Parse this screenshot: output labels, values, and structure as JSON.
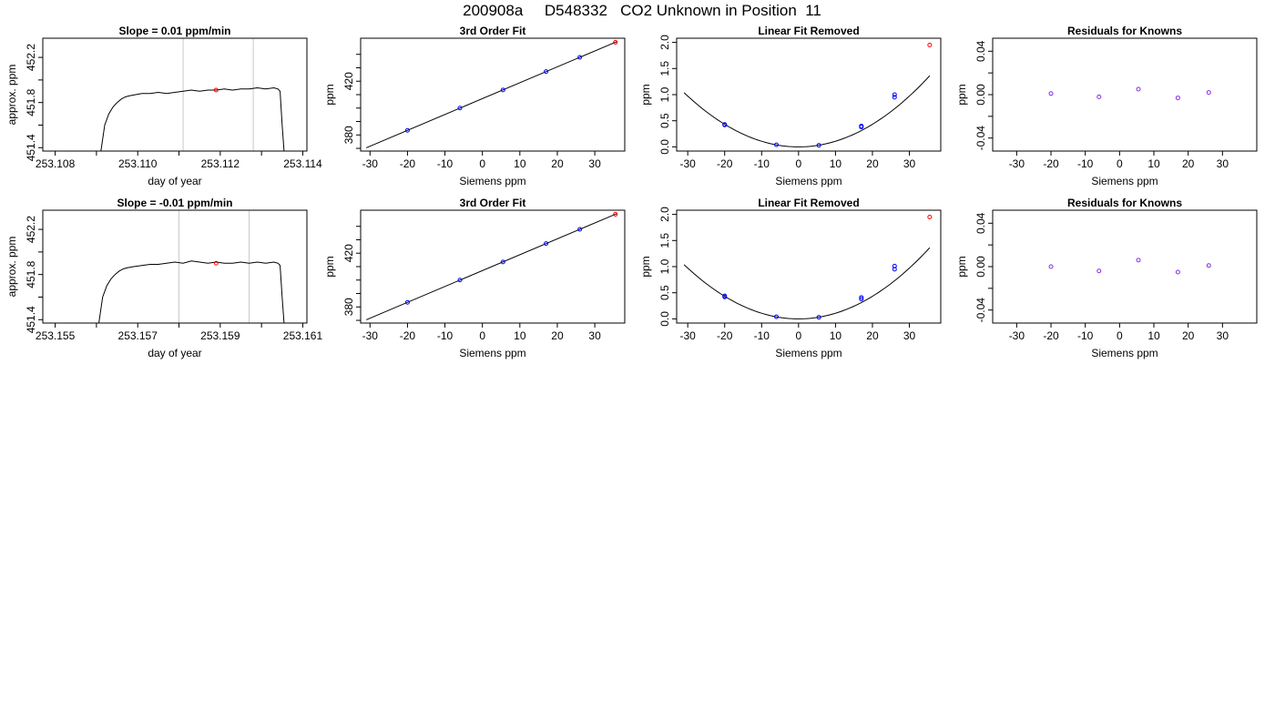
{
  "page": {
    "title": "200908a     D548332   CO2 Unknown in Position  11"
  },
  "chart_data": [
    {
      "type": "line",
      "title": "Slope =  0.01  ppm/min",
      "xlabel": "day of year",
      "ylabel": "approx. ppm",
      "xlim": [
        253.1077,
        253.1141
      ],
      "ylim": [
        451.37,
        452.37
      ],
      "xticks": [
        253.108,
        253.109,
        253.11,
        253.111,
        253.112,
        253.113,
        253.114
      ],
      "xtick_labels": [
        "253.108",
        "",
        "253.110",
        "",
        "253.112",
        "",
        "253.114"
      ],
      "yticks": [
        451.4,
        451.6,
        451.8,
        452.0,
        452.2
      ],
      "ytick_labels": [
        "451.4",
        "",
        "451.8",
        "",
        "452.2"
      ],
      "vlines": [
        253.1111,
        253.1128
      ],
      "series": [
        {
          "color": "#000000",
          "x": [
            253.1091,
            253.1092,
            253.1093,
            253.1094,
            253.1095,
            253.1096,
            253.1097,
            253.1098,
            253.10995,
            253.1101,
            253.1103,
            253.1105,
            253.1107,
            253.1109,
            253.1111,
            253.1113,
            253.1115,
            253.1117,
            253.1119,
            253.1121,
            253.1123,
            253.1125,
            253.1127,
            253.1129,
            253.1131,
            253.1133,
            253.1134,
            253.11345,
            253.1135,
            253.11355
          ],
          "y": [
            451.35,
            451.6,
            451.7,
            451.76,
            451.8,
            451.83,
            451.85,
            451.86,
            451.87,
            451.88,
            451.88,
            451.89,
            451.88,
            451.89,
            451.9,
            451.91,
            451.9,
            451.91,
            451.91,
            451.92,
            451.91,
            451.92,
            451.92,
            451.93,
            451.92,
            451.93,
            451.92,
            451.9,
            451.6,
            451.35
          ]
        }
      ],
      "points": [
        {
          "x": 253.1119,
          "y": 451.91,
          "color": "#ff0000"
        }
      ],
      "grid": false
    },
    {
      "type": "scatter",
      "title": "3rd Order Fit",
      "xlabel": "Siemens ppm",
      "ylabel": "ppm",
      "xlim": [
        -32.5,
        38
      ],
      "ylim": [
        368,
        452
      ],
      "xticks": [
        -30,
        -20,
        -10,
        0,
        10,
        20,
        30
      ],
      "yticks": [
        370,
        380,
        390,
        400,
        410,
        420,
        430,
        440
      ],
      "ytick_labels": [
        "",
        "380",
        "",
        "",
        "",
        "420",
        "",
        ""
      ],
      "line": {
        "x": [
          -31,
          36
        ],
        "y": [
          370.4,
          449.6
        ],
        "color": "#000000"
      },
      "series": [
        {
          "name": "",
          "color": "#0000ff",
          "x": [
            -20,
            -6,
            5.5,
            17,
            26
          ],
          "y": [
            383.4,
            400.0,
            413.5,
            427.2,
            437.8
          ]
        },
        {
          "name": "",
          "color": "#ff0000",
          "x": [
            35.5
          ],
          "y": [
            449.0
          ]
        }
      ],
      "grid": false
    },
    {
      "type": "scatter",
      "title": "Linear Fit Removed",
      "xlabel": "Siemens ppm",
      "ylabel": "ppm",
      "xlim": [
        -33,
        38.5
      ],
      "ylim": [
        -0.08,
        2.08
      ],
      "xticks": [
        -30,
        -20,
        -10,
        0,
        10,
        20,
        30
      ],
      "yticks": [
        0.0,
        0.5,
        1.0,
        1.5,
        2.0
      ],
      "ytick_labels": [
        "0.0",
        "0.5",
        "1.0",
        "1.5",
        "2.0"
      ],
      "curve": {
        "xmin": -31,
        "xmax": 35.5,
        "coefficients": [
          0,
          0,
          0.00108
        ],
        "color": "#000000"
      },
      "series": [
        {
          "name": "",
          "color": "#0000ff",
          "x": [
            -20,
            -20,
            -6,
            5.5,
            17,
            17,
            26,
            26
          ],
          "y": [
            0.43,
            0.42,
            0.04,
            0.03,
            0.38,
            0.4,
            0.95,
            1.0
          ]
        },
        {
          "name": "",
          "color": "#ff0000",
          "x": [
            35.5
          ],
          "y": [
            1.95
          ]
        }
      ],
      "grid": false
    },
    {
      "type": "scatter",
      "title": "Residuals for Knowns",
      "xlabel": "Siemens ppm",
      "ylabel": "ppm",
      "xlim": [
        -37,
        40
      ],
      "ylim": [
        -0.052,
        0.052
      ],
      "xticks": [
        -30,
        -20,
        -10,
        0,
        10,
        20,
        30
      ],
      "yticks": [
        -0.04,
        -0.02,
        0.0,
        0.02,
        0.04
      ],
      "ytick_labels": [
        "-0.04",
        "",
        "0.00",
        "",
        "0.04"
      ],
      "series": [
        {
          "name": "",
          "color": "#8a2be2",
          "x": [
            -20,
            -6,
            5.5,
            17,
            26
          ],
          "y": [
            0.001,
            -0.002,
            0.005,
            -0.003,
            0.002
          ]
        }
      ],
      "grid": false
    },
    {
      "type": "line",
      "title": "Slope =  -0.01  ppm/min",
      "xlabel": "day of year",
      "ylabel": "approx. ppm",
      "xlim": [
        253.1547,
        253.1611
      ],
      "ylim": [
        451.37,
        452.37
      ],
      "xticks": [
        253.155,
        253.156,
        253.157,
        253.158,
        253.159,
        253.16,
        253.161
      ],
      "xtick_labels": [
        "253.155",
        "",
        "253.157",
        "",
        "253.159",
        "",
        "253.161"
      ],
      "yticks": [
        451.4,
        451.6,
        451.8,
        452.0,
        452.2
      ],
      "ytick_labels": [
        "451.4",
        "",
        "451.8",
        "",
        "452.2"
      ],
      "vlines": [
        253.158,
        253.1597
      ],
      "series": [
        {
          "color": "#000000",
          "x": [
            253.15605,
            253.15615,
            253.15625,
            253.15635,
            253.15645,
            253.15655,
            253.15665,
            253.15675,
            253.1569,
            253.1571,
            253.1573,
            253.1575,
            253.1577,
            253.1579,
            253.1581,
            253.1583,
            253.1585,
            253.1587,
            253.1589,
            253.1591,
            253.1593,
            253.1595,
            253.1597,
            253.1599,
            253.1601,
            253.1603,
            253.1604,
            253.16045,
            253.1605,
            253.16055
          ],
          "y": [
            451.35,
            451.6,
            451.7,
            451.76,
            451.8,
            451.83,
            451.85,
            451.86,
            451.87,
            451.88,
            451.89,
            451.89,
            451.9,
            451.91,
            451.9,
            451.92,
            451.91,
            451.9,
            451.91,
            451.9,
            451.9,
            451.91,
            451.9,
            451.91,
            451.9,
            451.91,
            451.9,
            451.88,
            451.6,
            451.35
          ]
        }
      ],
      "points": [
        {
          "x": 253.1589,
          "y": 451.9,
          "color": "#ff0000"
        }
      ],
      "grid": false
    },
    {
      "type": "scatter",
      "title": "3rd Order Fit",
      "xlabel": "Siemens ppm",
      "ylabel": "ppm",
      "xlim": [
        -32.5,
        38
      ],
      "ylim": [
        368,
        452
      ],
      "xticks": [
        -30,
        -20,
        -10,
        0,
        10,
        20,
        30
      ],
      "yticks": [
        370,
        380,
        390,
        400,
        410,
        420,
        430,
        440
      ],
      "ytick_labels": [
        "",
        "380",
        "",
        "",
        "",
        "420",
        "",
        ""
      ],
      "line": {
        "x": [
          -31,
          36
        ],
        "y": [
          370.4,
          449.6
        ],
        "color": "#000000"
      },
      "series": [
        {
          "name": "",
          "color": "#0000ff",
          "x": [
            -20,
            -6,
            5.5,
            17,
            26
          ],
          "y": [
            383.4,
            400.0,
            413.5,
            427.2,
            437.8
          ]
        },
        {
          "name": "",
          "color": "#ff0000",
          "x": [
            35.5
          ],
          "y": [
            449.0
          ]
        }
      ],
      "grid": false
    },
    {
      "type": "scatter",
      "title": "Linear Fit Removed",
      "xlabel": "Siemens ppm",
      "ylabel": "ppm",
      "xlim": [
        -33,
        38.5
      ],
      "ylim": [
        -0.08,
        2.08
      ],
      "xticks": [
        -30,
        -20,
        -10,
        0,
        10,
        20,
        30
      ],
      "yticks": [
        0.0,
        0.5,
        1.0,
        1.5,
        2.0
      ],
      "ytick_labels": [
        "0.0",
        "0.5",
        "1.0",
        "1.5",
        "2.0"
      ],
      "curve": {
        "xmin": -31,
        "xmax": 35.5,
        "coefficients": [
          0,
          0,
          0.00108
        ],
        "color": "#000000"
      },
      "series": [
        {
          "name": "",
          "color": "#0000ff",
          "x": [
            -20,
            -20,
            -6,
            5.5,
            17,
            17,
            26,
            26
          ],
          "y": [
            0.44,
            0.42,
            0.04,
            0.03,
            0.38,
            0.41,
            0.95,
            1.01
          ]
        },
        {
          "name": "",
          "color": "#ff0000",
          "x": [
            35.5
          ],
          "y": [
            1.95
          ]
        }
      ],
      "grid": false
    },
    {
      "type": "scatter",
      "title": "Residuals for Knowns",
      "xlabel": "Siemens ppm",
      "ylabel": "ppm",
      "xlim": [
        -37,
        40
      ],
      "ylim": [
        -0.052,
        0.052
      ],
      "xticks": [
        -30,
        -20,
        -10,
        0,
        10,
        20,
        30
      ],
      "yticks": [
        -0.04,
        -0.02,
        0.0,
        0.02,
        0.04
      ],
      "ytick_labels": [
        "-0.04",
        "",
        "0.00",
        "",
        "0.04"
      ],
      "series": [
        {
          "name": "",
          "color": "#8a2be2",
          "x": [
            -20,
            -6,
            5.5,
            17,
            26
          ],
          "y": [
            0.0,
            -0.004,
            0.006,
            -0.005,
            0.001
          ]
        }
      ],
      "grid": false
    }
  ]
}
